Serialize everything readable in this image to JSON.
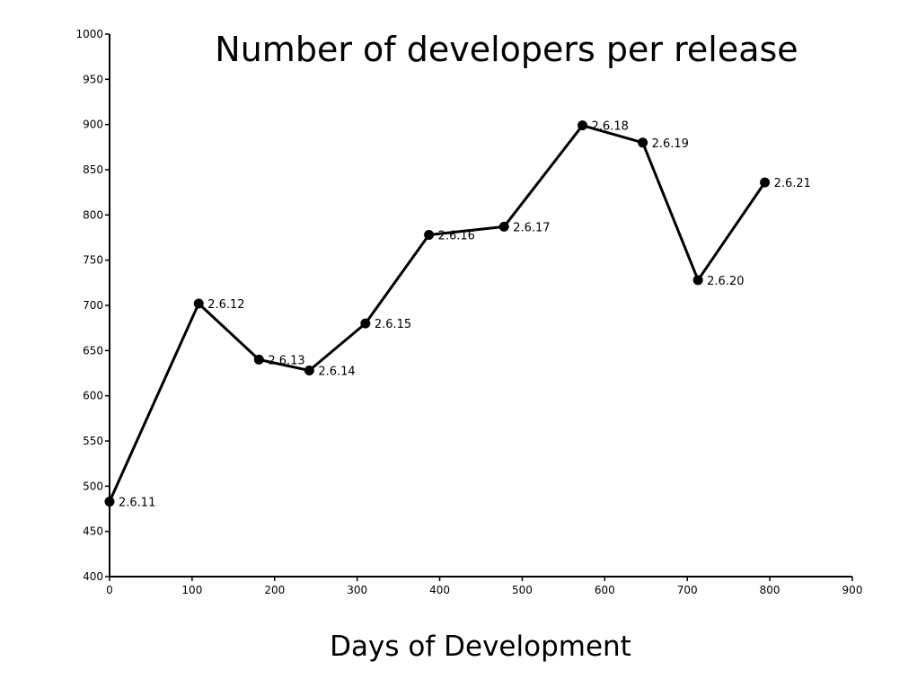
{
  "chart_data": {
    "type": "line",
    "title": "Number of developers per release",
    "xlabel": "Days of Development",
    "ylabel": "",
    "xlim": [
      0,
      900
    ],
    "ylim": [
      400,
      1000
    ],
    "x_ticks": [
      0,
      100,
      200,
      300,
      400,
      500,
      600,
      700,
      800,
      900
    ],
    "y_ticks": [
      400,
      450,
      500,
      550,
      600,
      650,
      700,
      750,
      800,
      850,
      900,
      950,
      1000
    ],
    "grid": false,
    "legend": "none",
    "series": [
      {
        "color": "#000000",
        "points": [
          {
            "x": 0,
            "y": 483,
            "label": "2.6.11"
          },
          {
            "x": 108,
            "y": 702,
            "label": "2.6.12"
          },
          {
            "x": 181,
            "y": 640,
            "label": "2.6.13"
          },
          {
            "x": 242,
            "y": 628,
            "label": "2.6.14"
          },
          {
            "x": 310,
            "y": 680,
            "label": "2.6.15"
          },
          {
            "x": 387,
            "y": 778,
            "label": "2.6.16"
          },
          {
            "x": 478,
            "y": 787,
            "label": "2.6.17"
          },
          {
            "x": 573,
            "y": 899,
            "label": "2.6.18"
          },
          {
            "x": 646,
            "y": 880,
            "label": "2.6.19"
          },
          {
            "x": 713,
            "y": 728,
            "label": "2.6.20"
          },
          {
            "x": 794,
            "y": 836,
            "label": "2.6.21"
          }
        ]
      }
    ]
  }
}
